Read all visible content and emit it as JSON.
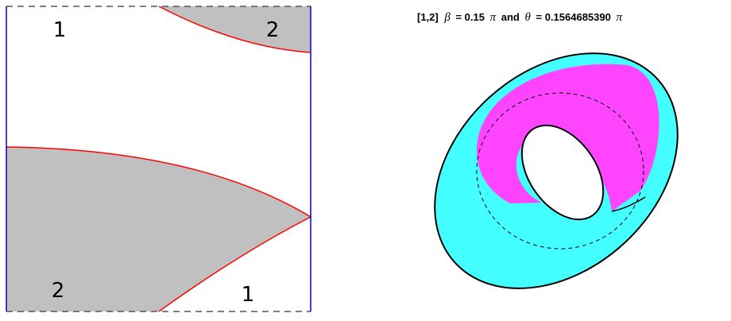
{
  "left_panel": {
    "region_labels": [
      "1",
      "2",
      "2",
      "1"
    ]
  },
  "right_panel": {
    "title": {
      "index": "[1,2]",
      "beta_symbol": "β",
      "beta_value": "= 0.15",
      "pi_1": "π",
      "conjunction": "and",
      "theta_symbol": "θ",
      "theta_value": "= 0.1564685390",
      "pi_2": "π"
    }
  }
}
